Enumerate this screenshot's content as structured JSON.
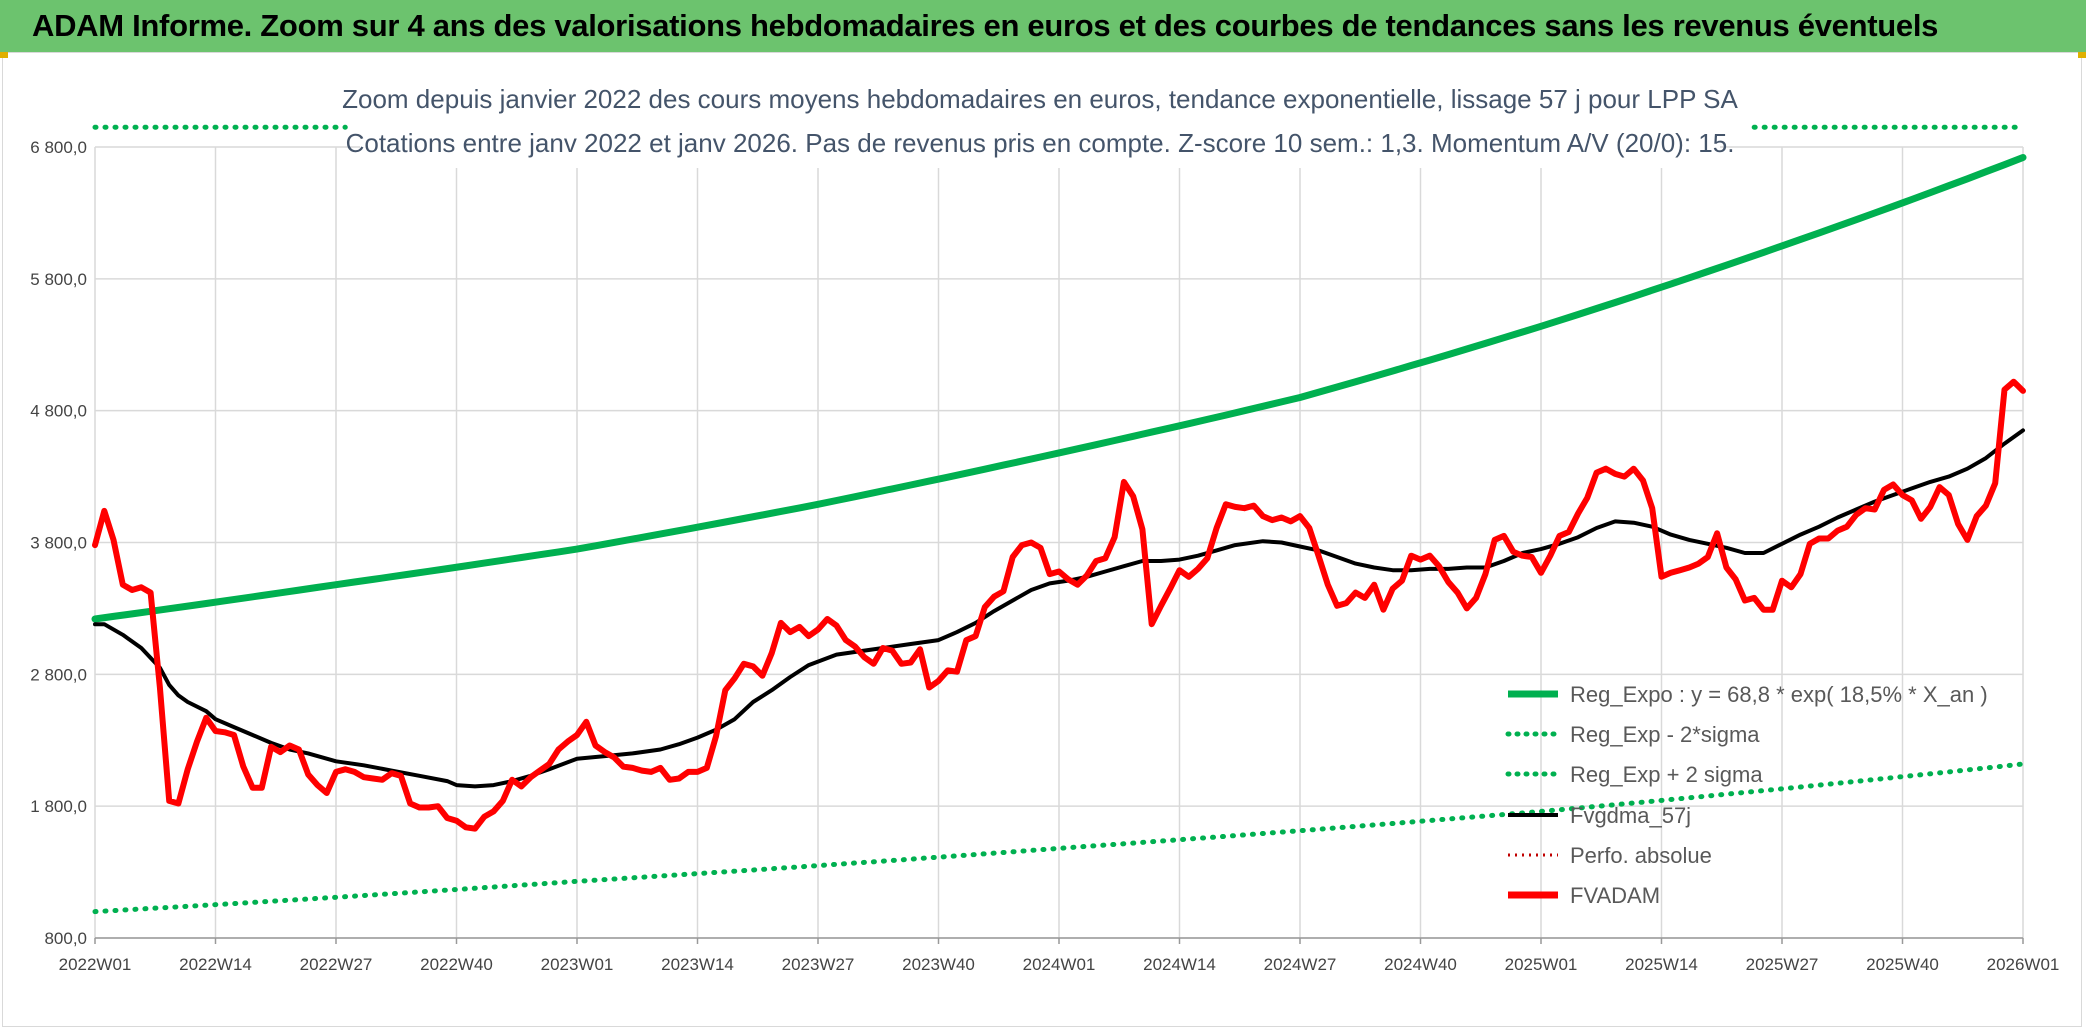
{
  "header": {
    "title": "ADAM Informe. Zoom sur 4 ans des valorisations hebdomadaires en euros et des courbes de tendances sans les revenus éventuels"
  },
  "colors": {
    "banner": "#6cc36e",
    "reg_expo": "#00b050",
    "fvadam": "#ff0000",
    "fvgdma": "#000000",
    "perfo": "#c00000",
    "grid": "#d9d9d9"
  },
  "chart_data": {
    "type": "line",
    "subtitle_lines": [
      "Zoom depuis janvier 2022 des cours moyens hebdomadaires en euros, tendance exponentielle, lissage 57 j pour LPP SA",
      "Cotations entre janv 2022 et janv 2026. Pas de revenus pris en compte. Z-score 10 sem.: 1,3. Momentum A/V (20/0): 15."
    ],
    "ylim": [
      800,
      6800
    ],
    "y_ticks": [
      800,
      1800,
      2800,
      3800,
      4800,
      5800,
      6800
    ],
    "y_tick_labels": [
      "800,0",
      "1 800,0",
      "2 800,0",
      "3 800,0",
      "4 800,0",
      "5 800,0",
      "6 800,0"
    ],
    "x_ticks": [
      0,
      13,
      26,
      39,
      52,
      65,
      78,
      91,
      104,
      117,
      130,
      143,
      156,
      169,
      182,
      195,
      208
    ],
    "x_tick_labels": [
      "2022W01",
      "2022W14",
      "2022W27",
      "2022W40",
      "2023W01",
      "2023W14",
      "2023W27",
      "2023W40",
      "2024W01",
      "2024W14",
      "2024W27",
      "2024W40",
      "2025W01",
      "2025W14",
      "2025W27",
      "2025W40",
      "2026W01"
    ],
    "x_max": 208,
    "legend": [
      {
        "name": "Reg_Expo : y = 68,8 * exp( 18,5% *  X_an )",
        "style": "solid-thick",
        "color": "#00b050"
      },
      {
        "name": "Reg_Exp - 2*sigma",
        "style": "dotted",
        "color": "#00b050"
      },
      {
        "name": "Reg_Exp + 2 sigma",
        "style": "dotted",
        "color": "#00b050"
      },
      {
        "name": "Fvgdma_57j",
        "style": "solid",
        "color": "#000000"
      },
      {
        "name": "Perfo. absolue",
        "style": "dotted",
        "color": "#c00000"
      },
      {
        "name": "FVADAM",
        "style": "solid-thick",
        "color": "#ff0000"
      }
    ],
    "series": [
      {
        "name": "Reg_Expo",
        "x": [
          0,
          26,
          52,
          78,
          104,
          130,
          156,
          182,
          208
        ],
        "values": [
          3220,
          3480,
          3750,
          4090,
          4480,
          4900,
          5440,
          6050,
          6720
        ]
      },
      {
        "name": "Reg_Exp - 2*sigma",
        "x": [
          0,
          52,
          104,
          156,
          208
        ],
        "values": [
          1000,
          1230,
          1480,
          1760,
          2120
        ]
      },
      {
        "name": "Reg_Exp + 2 sigma",
        "x": [
          0,
          27,
          179,
          208
        ],
        "values": [
          6950,
          6950,
          6950,
          6950
        ]
      },
      {
        "name": "Fvgdma_57j",
        "x": [
          0,
          1,
          3,
          5,
          7,
          8,
          9,
          10,
          12,
          13,
          15,
          17,
          19,
          21,
          23,
          26,
          29,
          32,
          35,
          38,
          39,
          41,
          43,
          45,
          47,
          49,
          52,
          55,
          58,
          61,
          63,
          65,
          67,
          69,
          71,
          73,
          75,
          77,
          80,
          83,
          85,
          88,
          91,
          93,
          95,
          97,
          99,
          101,
          103,
          104,
          105,
          107,
          109,
          111,
          113,
          115,
          117,
          119,
          121,
          123,
          126,
          128,
          130,
          132,
          134,
          136,
          138,
          140,
          142,
          144,
          146,
          148,
          150,
          152,
          154,
          156,
          158,
          160,
          162,
          164,
          166,
          168,
          170,
          172,
          174,
          176,
          178,
          180,
          182,
          184,
          186,
          188,
          190,
          192,
          194,
          196,
          198,
          200,
          202,
          204,
          206,
          208
        ],
        "values": [
          3180,
          3180,
          3100,
          3000,
          2850,
          2720,
          2640,
          2590,
          2520,
          2460,
          2400,
          2340,
          2280,
          2230,
          2200,
          2140,
          2110,
          2070,
          2030,
          1990,
          1960,
          1950,
          1960,
          1990,
          2030,
          2080,
          2160,
          2180,
          2200,
          2230,
          2270,
          2320,
          2380,
          2460,
          2590,
          2680,
          2780,
          2870,
          2950,
          2980,
          3000,
          3030,
          3060,
          3120,
          3190,
          3280,
          3360,
          3440,
          3490,
          3500,
          3510,
          3540,
          3580,
          3620,
          3660,
          3660,
          3670,
          3700,
          3740,
          3780,
          3810,
          3800,
          3770,
          3740,
          3690,
          3640,
          3610,
          3590,
          3590,
          3600,
          3600,
          3610,
          3610,
          3660,
          3720,
          3750,
          3790,
          3840,
          3910,
          3960,
          3950,
          3920,
          3860,
          3820,
          3790,
          3760,
          3720,
          3720,
          3790,
          3860,
          3920,
          3990,
          4050,
          4110,
          4160,
          4210,
          4260,
          4300,
          4360,
          4440,
          4550,
          4650
        ]
      },
      {
        "name": "FVADAM",
        "x": [
          0,
          1,
          2,
          3,
          4,
          5,
          6,
          7,
          8,
          9,
          10,
          11,
          12,
          13,
          14,
          15,
          16,
          17,
          18,
          19,
          20,
          21,
          22,
          23,
          24,
          25,
          26,
          27,
          28,
          29,
          30,
          31,
          32,
          33,
          34,
          35,
          36,
          37,
          38,
          39,
          40,
          41,
          42,
          43,
          44,
          45,
          46,
          47,
          48,
          49,
          50,
          51,
          52,
          53,
          54,
          55,
          56,
          57,
          58,
          59,
          60,
          61,
          62,
          63,
          64,
          65,
          66,
          67,
          68,
          69,
          70,
          71,
          72,
          73,
          74,
          75,
          76,
          77,
          78,
          79,
          80,
          81,
          82,
          83,
          84,
          85,
          86,
          87,
          88,
          89,
          90,
          91,
          92,
          93,
          94,
          95,
          96,
          97,
          98,
          99,
          100,
          101,
          102,
          103,
          104,
          105,
          106,
          107,
          108,
          109,
          110,
          111,
          112,
          113,
          114,
          115,
          116,
          117,
          118,
          119,
          120,
          121,
          122,
          123,
          124,
          125,
          126,
          127,
          128,
          129,
          130,
          131,
          132,
          133,
          134,
          135,
          136,
          137,
          138,
          139,
          140,
          141,
          142,
          143,
          144,
          145,
          146,
          147,
          148,
          149,
          150,
          151,
          152,
          153,
          154,
          155,
          156,
          157,
          158,
          159,
          160,
          161,
          162,
          163,
          164,
          165,
          166,
          167,
          168,
          169,
          170,
          171,
          172,
          173,
          174,
          175,
          176,
          177,
          178,
          179,
          180,
          181,
          182,
          183,
          184,
          185,
          186,
          187,
          188,
          189,
          190,
          191,
          192,
          193,
          194,
          195,
          196,
          197,
          198,
          199,
          200,
          201,
          202,
          203,
          204,
          205,
          206,
          207,
          208
        ],
        "values": [
          3780,
          4040,
          3820,
          3480,
          3440,
          3460,
          3420,
          2700,
          1840,
          1820,
          2080,
          2290,
          2470,
          2370,
          2360,
          2340,
          2100,
          1940,
          1940,
          2250,
          2210,
          2260,
          2230,
          2040,
          1960,
          1900,
          2060,
          2080,
          2060,
          2020,
          2010,
          2000,
          2050,
          2030,
          1820,
          1790,
          1790,
          1800,
          1710,
          1690,
          1640,
          1630,
          1720,
          1760,
          1840,
          2000,
          1950,
          2020,
          2070,
          2120,
          2230,
          2290,
          2340,
          2440,
          2260,
          2210,
          2170,
          2100,
          2090,
          2070,
          2060,
          2090,
          2000,
          2010,
          2060,
          2060,
          2090,
          2330,
          2680,
          2770,
          2880,
          2860,
          2790,
          2960,
          3190,
          3120,
          3160,
          3090,
          3140,
          3220,
          3170,
          3060,
          3010,
          2930,
          2880,
          3000,
          2980,
          2880,
          2890,
          2990,
          2700,
          2750,
          2830,
          2820,
          3060,
          3090,
          3310,
          3390,
          3430,
          3690,
          3780,
          3800,
          3760,
          3560,
          3580,
          3520,
          3480,
          3550,
          3660,
          3680,
          3840,
          4260,
          4150,
          3900,
          3180,
          3320,
          3450,
          3590,
          3540,
          3600,
          3680,
          3910,
          4090,
          4070,
          4060,
          4080,
          4000,
          3970,
          3990,
          3960,
          4000,
          3910,
          3700,
          3480,
          3320,
          3340,
          3420,
          3380,
          3480,
          3290,
          3450,
          3510,
          3700,
          3670,
          3700,
          3620,
          3500,
          3420,
          3300,
          3380,
          3560,
          3820,
          3850,
          3730,
          3700,
          3690,
          3570,
          3700,
          3850,
          3880,
          4020,
          4140,
          4330,
          4360,
          4320,
          4300,
          4360,
          4270,
          4060,
          3540,
          3570,
          3590,
          3610,
          3640,
          3690,
          3870,
          3610,
          3520,
          3360,
          3380,
          3290,
          3290,
          3510,
          3460,
          3560,
          3790,
          3830,
          3830,
          3890,
          3920,
          4010,
          4060,
          4050,
          4200,
          4240,
          4160,
          4120,
          3980,
          4070,
          4220,
          4160,
          3940,
          3820,
          4000,
          4080,
          4250,
          4960,
          5020,
          4950
        ]
      }
    ]
  }
}
